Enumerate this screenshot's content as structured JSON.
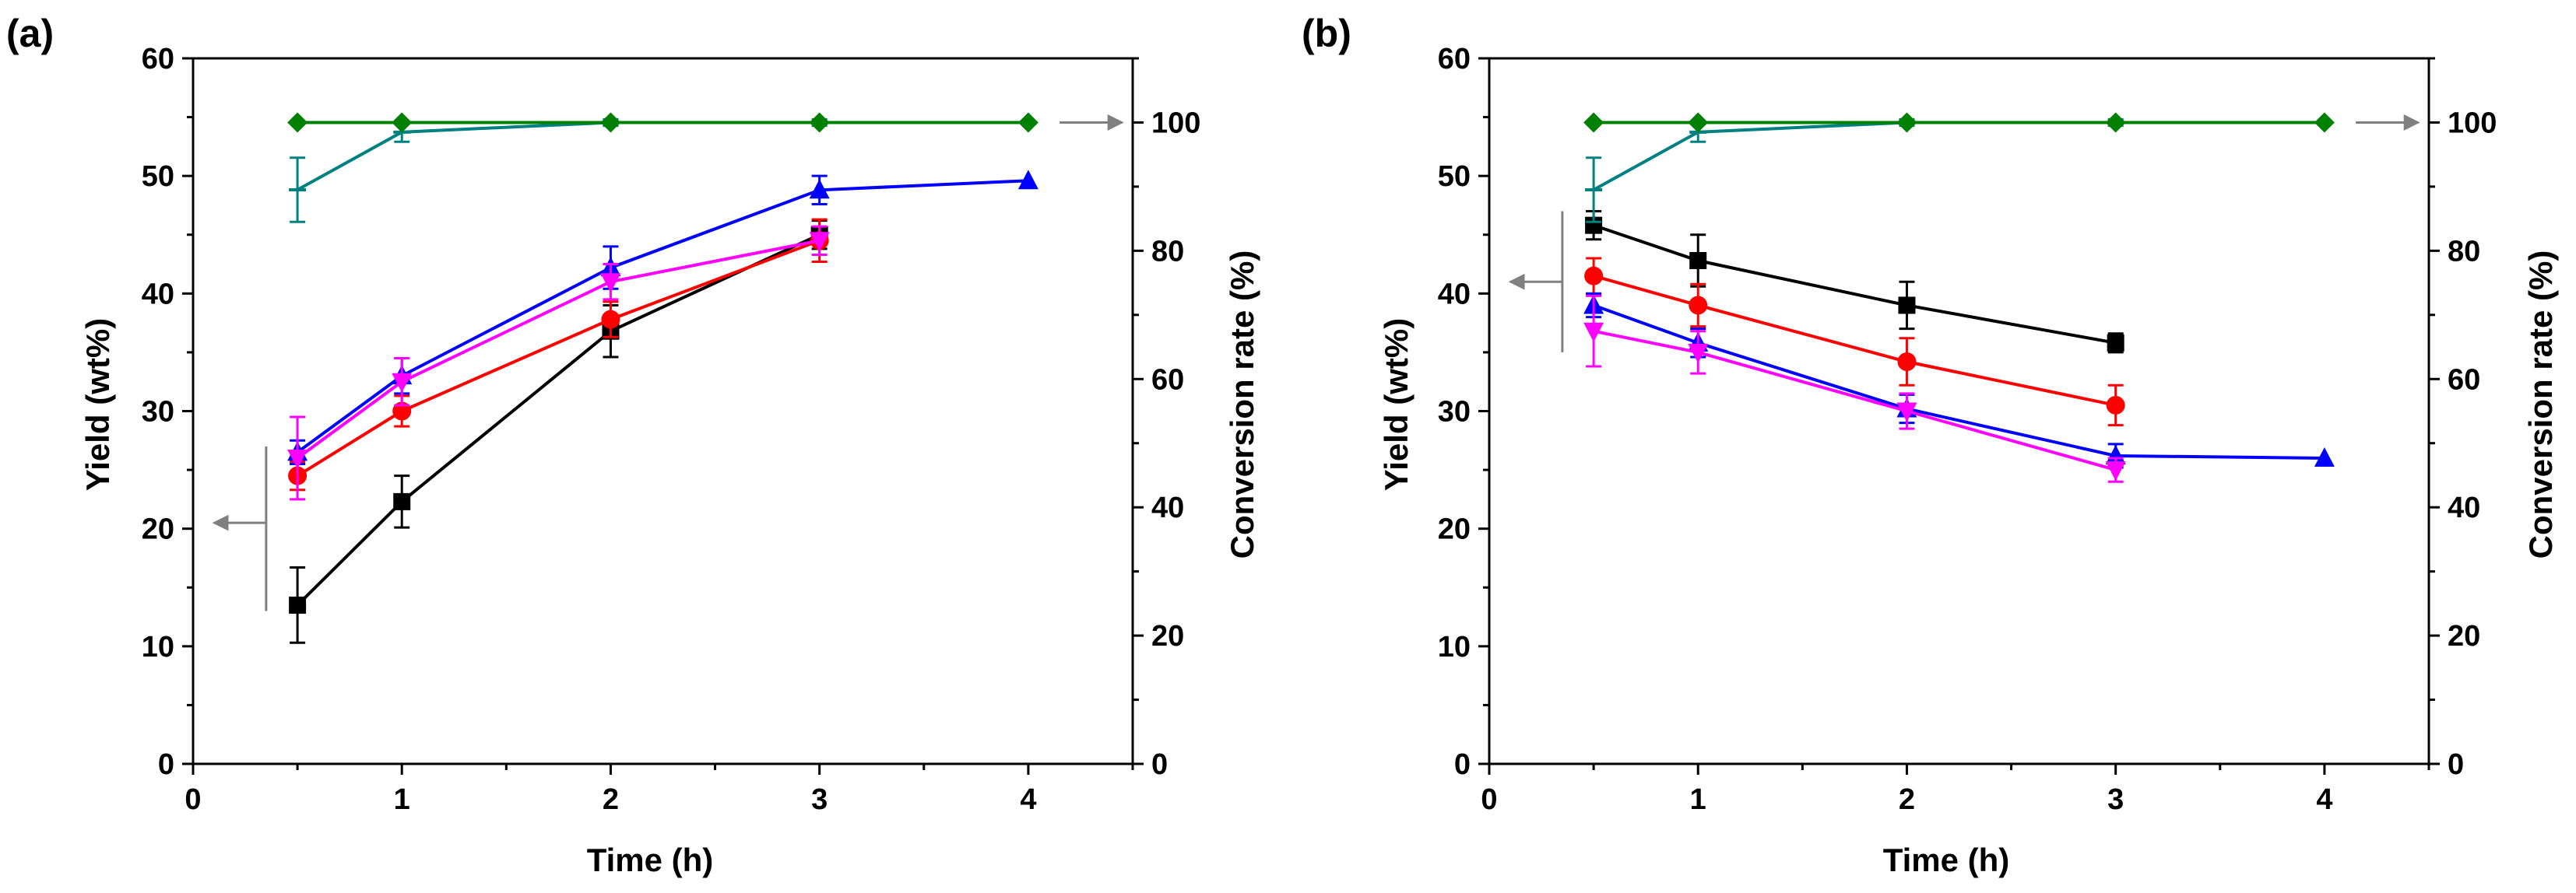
{
  "chart_data": [
    {
      "type": "line",
      "panel_label": "(a)",
      "xlabel": "Time (h)",
      "ylabel": "Yield (wt%)",
      "y2label": "Conversion rate (%)",
      "xlim": [
        0,
        4.5
      ],
      "ylim": [
        0,
        60
      ],
      "y2lim": [
        0,
        110
      ],
      "xticks": [
        0,
        1,
        2,
        3,
        4
      ],
      "yticks": [
        0,
        10,
        20,
        30,
        40,
        50,
        60
      ],
      "y2ticks": [
        0,
        20,
        40,
        60,
        80,
        100
      ],
      "series": [
        {
          "name": "black",
          "axis": "left",
          "color": "#000000",
          "marker": "square",
          "x": [
            0.5,
            1,
            2,
            3
          ],
          "y": [
            13.5,
            22.3,
            36.8,
            45.0
          ],
          "err": [
            3.2,
            2.2,
            2.2,
            1.2
          ]
        },
        {
          "name": "red",
          "axis": "left",
          "color": "#ff0000",
          "marker": "circle",
          "x": [
            0.5,
            1,
            2,
            3
          ],
          "y": [
            24.5,
            30.0,
            37.8,
            44.5
          ],
          "err": [
            1.2,
            1.3,
            1.5,
            1.8
          ]
        },
        {
          "name": "blue",
          "axis": "left",
          "color": "#0000ff",
          "marker": "triangle-up",
          "x": [
            0.5,
            1,
            2,
            3,
            4
          ],
          "y": [
            26.5,
            33.0,
            42.2,
            48.8,
            49.6
          ],
          "err": [
            1.0,
            1.5,
            1.8,
            1.2,
            0
          ]
        },
        {
          "name": "magenta",
          "axis": "left",
          "color": "#ff00ff",
          "marker": "triangle-down",
          "x": [
            0.5,
            1,
            2,
            3
          ],
          "y": [
            26.0,
            32.5,
            41.0,
            44.5
          ],
          "err": [
            3.5,
            2.0,
            1.5,
            1.2
          ]
        },
        {
          "name": "teal",
          "axis": "right",
          "color": "#008080",
          "marker": "dash",
          "x": [
            0.5,
            1,
            2,
            3
          ],
          "y": [
            89.5,
            98.5,
            100.0,
            100.0
          ],
          "err": [
            5.0,
            1.5,
            0.5,
            0.5
          ]
        },
        {
          "name": "green",
          "axis": "right",
          "color": "#008000",
          "marker": "diamond",
          "x": [
            0.5,
            1,
            2,
            3,
            4
          ],
          "y": [
            100,
            100,
            100,
            100,
            100
          ],
          "err": [
            0,
            0,
            0,
            0,
            0
          ]
        }
      ],
      "annotations": [
        {
          "direction": "left",
          "axis": "left",
          "bracket": [
            13,
            27
          ],
          "arrow_y": 20.5,
          "arrow_x": [
            0.1,
            0.35
          ]
        },
        {
          "direction": "right",
          "axis": "right",
          "y": 100,
          "arrow_x": [
            4.15,
            4.45
          ]
        }
      ]
    },
    {
      "type": "line",
      "panel_label": "(b)",
      "xlabel": "Time (h)",
      "ylabel": "Yield (wt%)",
      "y2label": "Conversion rate (%)",
      "xlim": [
        0,
        4.5
      ],
      "ylim": [
        0,
        60
      ],
      "y2lim": [
        0,
        110
      ],
      "xticks": [
        0,
        1,
        2,
        3,
        4
      ],
      "yticks": [
        0,
        10,
        20,
        30,
        40,
        50,
        60
      ],
      "y2ticks": [
        0,
        20,
        40,
        60,
        80,
        100
      ],
      "series": [
        {
          "name": "black",
          "axis": "left",
          "color": "#000000",
          "marker": "square",
          "x": [
            0.5,
            1,
            2,
            3
          ],
          "y": [
            45.8,
            42.8,
            39.0,
            35.8
          ],
          "err": [
            1.2,
            2.2,
            2.0,
            0.8
          ]
        },
        {
          "name": "red",
          "axis": "left",
          "color": "#ff0000",
          "marker": "circle",
          "x": [
            0.5,
            1,
            2,
            3
          ],
          "y": [
            41.5,
            39.0,
            34.2,
            30.5
          ],
          "err": [
            1.5,
            1.8,
            2.0,
            1.7
          ]
        },
        {
          "name": "blue",
          "axis": "left",
          "color": "#0000ff",
          "marker": "triangle-up",
          "x": [
            0.5,
            1,
            2,
            3,
            4
          ],
          "y": [
            39.0,
            35.8,
            30.2,
            26.2,
            26.0
          ],
          "err": [
            1.0,
            1.2,
            1.2,
            1.0,
            0
          ]
        },
        {
          "name": "magenta",
          "axis": "left",
          "color": "#ff00ff",
          "marker": "triangle-down",
          "x": [
            0.5,
            1,
            2,
            3
          ],
          "y": [
            36.8,
            35.0,
            30.0,
            25.0
          ],
          "err": [
            3.0,
            1.8,
            1.5,
            1.0
          ]
        },
        {
          "name": "teal",
          "axis": "right",
          "color": "#008080",
          "marker": "dash",
          "x": [
            0.5,
            1,
            2,
            3
          ],
          "y": [
            89.5,
            98.5,
            100.0,
            100.0
          ],
          "err": [
            5.0,
            1.5,
            0.5,
            0.5
          ]
        },
        {
          "name": "green",
          "axis": "right",
          "color": "#008000",
          "marker": "diamond",
          "x": [
            0.5,
            1,
            2,
            3,
            4
          ],
          "y": [
            100,
            100,
            100,
            100,
            100
          ],
          "err": [
            0,
            0,
            0,
            0,
            0
          ]
        }
      ],
      "annotations": [
        {
          "direction": "left",
          "axis": "left",
          "bracket": [
            35,
            47
          ],
          "arrow_y": 41,
          "arrow_x": [
            0.1,
            0.35
          ]
        },
        {
          "direction": "right",
          "axis": "right",
          "y": 100,
          "arrow_x": [
            4.15,
            4.45
          ]
        }
      ]
    }
  ]
}
